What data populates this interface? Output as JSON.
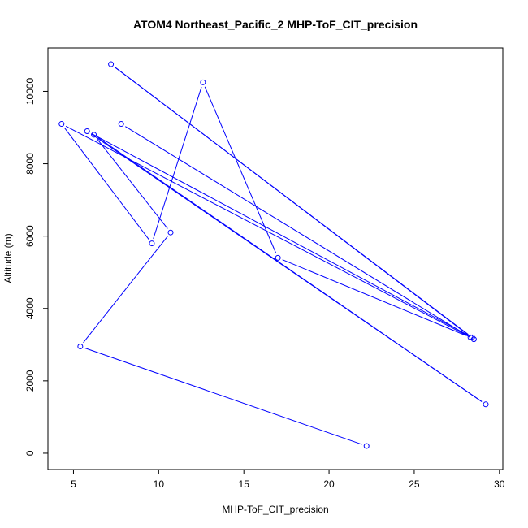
{
  "chart_data": {
    "type": "line",
    "title": "ATOM4 Northeast_Pacific_2 MHP-ToF_CIT_precision",
    "xlabel": "MHP-ToF_CIT_precision",
    "ylabel": "Altitude (m)",
    "xlim": [
      3.5,
      30.2
    ],
    "ylim": [
      -450,
      11200
    ],
    "x_ticks": [
      5,
      10,
      15,
      20,
      25,
      30
    ],
    "y_ticks": [
      0,
      2000,
      4000,
      6000,
      8000,
      10000
    ],
    "grid": false,
    "line_color": "#0000ff",
    "marker": "open-circle",
    "series": [
      {
        "x": [
          22.2,
          5.4,
          10.7,
          6.2,
          29.2,
          5.8,
          28.4,
          7.2,
          28.5,
          4.3,
          9.6,
          12.6,
          17.0,
          28.3,
          7.8
        ],
        "y": [
          200,
          2950,
          6100,
          8800,
          1350,
          8900,
          3200,
          10750,
          3150,
          9100,
          5800,
          10250,
          5400,
          3200,
          9100
        ]
      }
    ]
  }
}
